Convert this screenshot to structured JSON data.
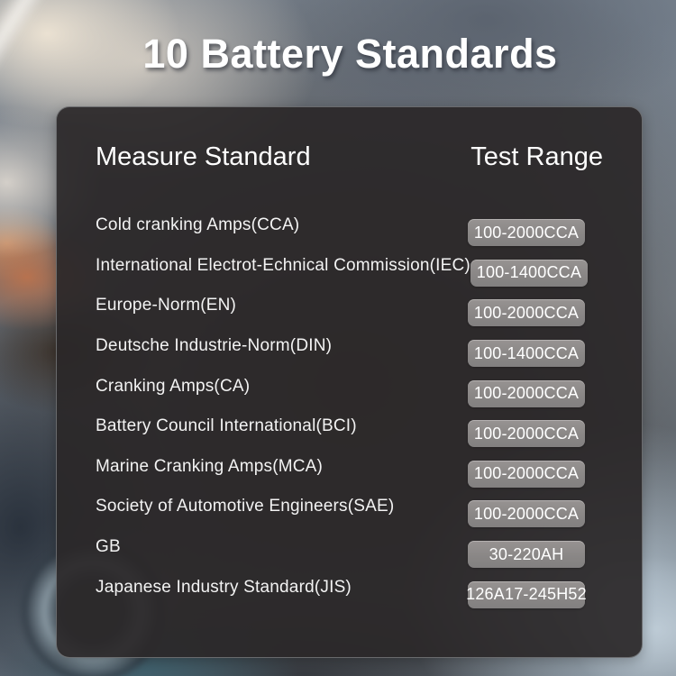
{
  "title": "10 Battery Standards",
  "table": {
    "headers": {
      "standard": "Measure Standard",
      "range": "Test Range"
    },
    "rows": [
      {
        "label": "Cold cranking Amps(CCA)",
        "range": "100-2000CCA"
      },
      {
        "label": "International Electrot-Echnical Commission(IEC)",
        "range": "100-1400CCA"
      },
      {
        "label": "Europe-Norm(EN)",
        "range": "100-2000CCA"
      },
      {
        "label": "Deutsche Industrie-Norm(DIN)",
        "range": "100-1400CCA"
      },
      {
        "label": "Cranking Amps(CA)",
        "range": "100-2000CCA"
      },
      {
        "label": "Battery Council International(BCI)",
        "range": "100-2000CCA"
      },
      {
        "label": "Marine Cranking Amps(MCA)",
        "range": "100-2000CCA"
      },
      {
        "label": "Society of Automotive Engineers(SAE)",
        "range": "100-2000CCA"
      },
      {
        "label": "GB",
        "range": "30-220AH"
      },
      {
        "label": "Japanese Industry Standard(JIS)",
        "range": "126A17-245H52"
      }
    ]
  },
  "colors": {
    "panel_bg": "#2a2728",
    "badge_bg": "#8d8a89",
    "text": "#ffffff",
    "background_base": "#6f7a87"
  }
}
